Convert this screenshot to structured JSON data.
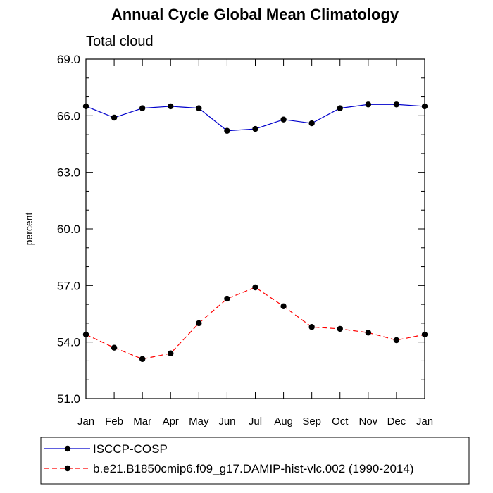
{
  "chart_data": {
    "type": "line",
    "title": "Annual Cycle Global Mean Climatology",
    "subtitle": "Total cloud",
    "ylabel": "percent",
    "xlabel": "",
    "ylim": [
      51.0,
      69.0
    ],
    "yticks": [
      "51.0",
      "54.0",
      "57.0",
      "60.0",
      "63.0",
      "66.0",
      "69.0"
    ],
    "categories": [
      "Jan",
      "Feb",
      "Mar",
      "Apr",
      "May",
      "Jun",
      "Jul",
      "Aug",
      "Sep",
      "Oct",
      "Nov",
      "Dec",
      "Jan"
    ],
    "series": [
      {
        "name": "ISCCP-COSP",
        "color": "#0000cc",
        "dash": "solid",
        "values": [
          66.5,
          65.9,
          66.4,
          66.5,
          66.4,
          65.2,
          65.3,
          65.8,
          65.6,
          66.4,
          66.6,
          66.6,
          66.5
        ]
      },
      {
        "name": "b.e21.B1850cmip6.f09_g17.DAMIP-hist-vlc.002 (1990-2014)",
        "color": "#ff0000",
        "dash": "dashed",
        "values": [
          54.4,
          53.7,
          53.1,
          53.4,
          55.0,
          56.3,
          56.9,
          55.9,
          54.8,
          54.7,
          54.5,
          54.1,
          54.4
        ]
      }
    ],
    "grid": false,
    "legend_position": "bottom"
  }
}
